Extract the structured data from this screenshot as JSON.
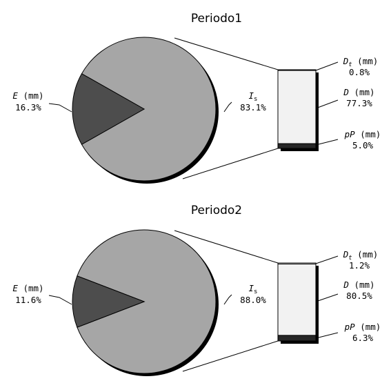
{
  "colors": {
    "pie_main": "#a6a6a6",
    "pie_slice": "#4d4d4d",
    "bar_fill": "#f2f2f2",
    "shadow": "#000000"
  },
  "chart_data": [
    {
      "type": "bar-of-pie",
      "title": "Periodo1",
      "pie_slices": [
        {
          "var": "I",
          "sub": "s",
          "value_label": "83.1%",
          "value": 83.1
        },
        {
          "var": "E",
          "unit": " (mm)",
          "value_label": "16.3%",
          "value": 16.3
        }
      ],
      "bar_segments": [
        {
          "var": "D",
          "sub": "t",
          "unit": " (mm)",
          "value_label": "0.8%",
          "value": 0.8
        },
        {
          "var": "D",
          "sub": "",
          "unit": " (mm)",
          "value_label": "77.3%",
          "value": 77.3
        },
        {
          "var": "pP",
          "sub": "",
          "unit": " (mm)",
          "value_label": "5.0%",
          "value": 5.0
        }
      ]
    },
    {
      "type": "bar-of-pie",
      "title": "Periodo2",
      "pie_slices": [
        {
          "var": "I",
          "sub": "s",
          "value_label": "88.0%",
          "value": 88.0
        },
        {
          "var": "E",
          "unit": " (mm)",
          "value_label": "11.6%",
          "value": 11.6
        }
      ],
      "bar_segments": [
        {
          "var": "D",
          "sub": "t",
          "unit": " (mm)",
          "value_label": "1.2%",
          "value": 1.2
        },
        {
          "var": "D",
          "sub": "",
          "unit": " (mm)",
          "value_label": "80.5%",
          "value": 80.5
        },
        {
          "var": "pP",
          "sub": "",
          "unit": " (mm)",
          "value_label": "6.3%",
          "value": 6.3
        }
      ]
    }
  ]
}
